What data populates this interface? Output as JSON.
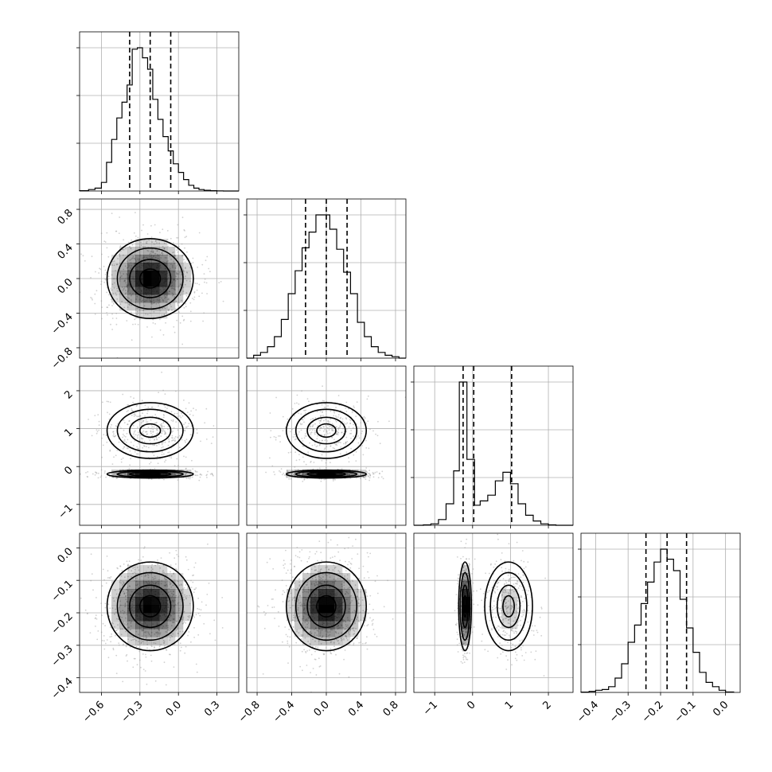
{
  "chart_data": {
    "type": "corner",
    "style": {
      "grid": true,
      "line_color": "#000000",
      "grid_color": "#b0b0b0",
      "density_color": "#000000"
    },
    "parameters": [
      {
        "index": 0,
        "range": [
          -0.77,
          0.47
        ],
        "ticks": [
          -0.6,
          -0.3,
          0.0,
          0.3
        ],
        "tick_labels": [
          "−0.6",
          "−0.3",
          "0.0",
          "0.3"
        ],
        "quantiles": [
          -0.38,
          -0.22,
          -0.06
        ],
        "hist": {
          "edges": [
            -0.77,
            -0.7,
            -0.65,
            -0.6,
            -0.56,
            -0.52,
            -0.48,
            -0.44,
            -0.4,
            -0.36,
            -0.32,
            -0.28,
            -0.24,
            -0.2,
            -0.16,
            -0.12,
            -0.08,
            -0.04,
            0.0,
            0.04,
            0.08,
            0.12,
            0.16,
            0.2,
            0.25,
            0.3,
            0.35,
            0.4,
            0.47
          ],
          "counts": [
            0.002,
            0.01,
            0.02,
            0.06,
            0.2,
            0.36,
            0.51,
            0.62,
            0.74,
            0.99,
            1.0,
            0.93,
            0.85,
            0.64,
            0.5,
            0.38,
            0.28,
            0.19,
            0.13,
            0.08,
            0.04,
            0.02,
            0.01,
            0.005,
            0.002,
            0.001,
            0.0,
            0.0
          ]
        }
      },
      {
        "index": 1,
        "range": [
          -0.92,
          0.92
        ],
        "ticks": [
          -0.8,
          -0.4,
          0.0,
          0.4,
          0.8
        ],
        "tick_labels": [
          "−0.8",
          "−0.4",
          "0.0",
          "0.4",
          "0.8"
        ],
        "quantiles": [
          -0.24,
          0.0,
          0.24
        ],
        "hist": {
          "edges": [
            -0.92,
            -0.84,
            -0.76,
            -0.68,
            -0.6,
            -0.52,
            -0.44,
            -0.36,
            -0.28,
            -0.2,
            -0.12,
            -0.04,
            0.04,
            0.12,
            0.2,
            0.28,
            0.36,
            0.44,
            0.52,
            0.6,
            0.68,
            0.76,
            0.84,
            0.92
          ],
          "counts": [
            0.0,
            0.02,
            0.04,
            0.08,
            0.15,
            0.27,
            0.45,
            0.61,
            0.77,
            0.88,
            1.0,
            1.0,
            0.9,
            0.76,
            0.6,
            0.45,
            0.25,
            0.15,
            0.08,
            0.04,
            0.02,
            0.01,
            0.0
          ]
        }
      },
      {
        "index": 2,
        "range": [
          -1.55,
          2.65
        ],
        "ticks": [
          -1,
          0,
          1,
          2
        ],
        "tick_labels": [
          "−1",
          "0",
          "1",
          "2"
        ],
        "quantiles": [
          -0.25,
          0.03,
          1.03
        ],
        "hist": {
          "edges": [
            -1.55,
            -1.3,
            -1.1,
            -0.9,
            -0.7,
            -0.5,
            -0.35,
            -0.15,
            0.05,
            0.2,
            0.4,
            0.6,
            0.8,
            1.0,
            1.2,
            1.4,
            1.6,
            1.8,
            2.0,
            2.2,
            2.65
          ],
          "counts": [
            0.0,
            0.003,
            0.01,
            0.04,
            0.15,
            0.38,
            1.0,
            0.46,
            0.14,
            0.17,
            0.21,
            0.31,
            0.37,
            0.29,
            0.15,
            0.07,
            0.03,
            0.01,
            0.003,
            0.0
          ]
        }
      },
      {
        "index": 3,
        "range": [
          -0.445,
          0.045
        ],
        "ticks": [
          -0.4,
          -0.3,
          -0.2,
          -0.1,
          0.0
        ],
        "tick_labels": [
          "−0.4",
          "−0.3",
          "−0.2",
          "−0.1",
          "0.0"
        ],
        "quantiles": [
          -0.245,
          -0.18,
          -0.12
        ],
        "hist": {
          "edges": [
            -0.445,
            -0.42,
            -0.4,
            -0.38,
            -0.36,
            -0.34,
            -0.32,
            -0.3,
            -0.28,
            -0.26,
            -0.24,
            -0.22,
            -0.2,
            -0.18,
            -0.16,
            -0.14,
            -0.12,
            -0.1,
            -0.08,
            -0.06,
            -0.04,
            -0.02,
            0.0,
            0.025
          ],
          "counts": [
            0.002,
            0.007,
            0.015,
            0.02,
            0.04,
            0.1,
            0.2,
            0.35,
            0.47,
            0.62,
            0.77,
            0.91,
            1.0,
            0.93,
            0.85,
            0.65,
            0.45,
            0.28,
            0.14,
            0.07,
            0.04,
            0.015,
            0.003
          ]
        }
      }
    ],
    "pairs": [
      {
        "x": 0,
        "y": 1,
        "components": [
          {
            "cx": -0.22,
            "cy": 0.0,
            "sx": 0.16,
            "sy": 0.22,
            "w": 1.0
          }
        ]
      },
      {
        "x": 0,
        "y": 2,
        "components": [
          {
            "cx": -0.22,
            "cy": -0.2,
            "sx": 0.16,
            "sy": 0.05,
            "w": 0.55
          },
          {
            "cx": -0.22,
            "cy": 0.95,
            "sx": 0.16,
            "sy": 0.35,
            "w": 0.45
          }
        ]
      },
      {
        "x": 1,
        "y": 2,
        "components": [
          {
            "cx": 0.0,
            "cy": -0.2,
            "sx": 0.22,
            "sy": 0.05,
            "w": 0.55
          },
          {
            "cx": 0.0,
            "cy": 0.95,
            "sx": 0.22,
            "sy": 0.35,
            "w": 0.45
          }
        ]
      },
      {
        "x": 0,
        "y": 3,
        "components": [
          {
            "cx": -0.22,
            "cy": -0.18,
            "sx": 0.16,
            "sy": 0.065,
            "w": 1.0
          }
        ]
      },
      {
        "x": 1,
        "y": 3,
        "components": [
          {
            "cx": 0.0,
            "cy": -0.18,
            "sx": 0.22,
            "sy": 0.065,
            "w": 1.0
          }
        ]
      },
      {
        "x": 2,
        "y": 3,
        "components": [
          {
            "cx": -0.2,
            "cy": -0.18,
            "sx": 0.08,
            "sy": 0.065,
            "w": 0.55
          },
          {
            "cx": 0.95,
            "cy": -0.18,
            "sx": 0.3,
            "sy": 0.065,
            "w": 0.45
          }
        ]
      }
    ]
  }
}
